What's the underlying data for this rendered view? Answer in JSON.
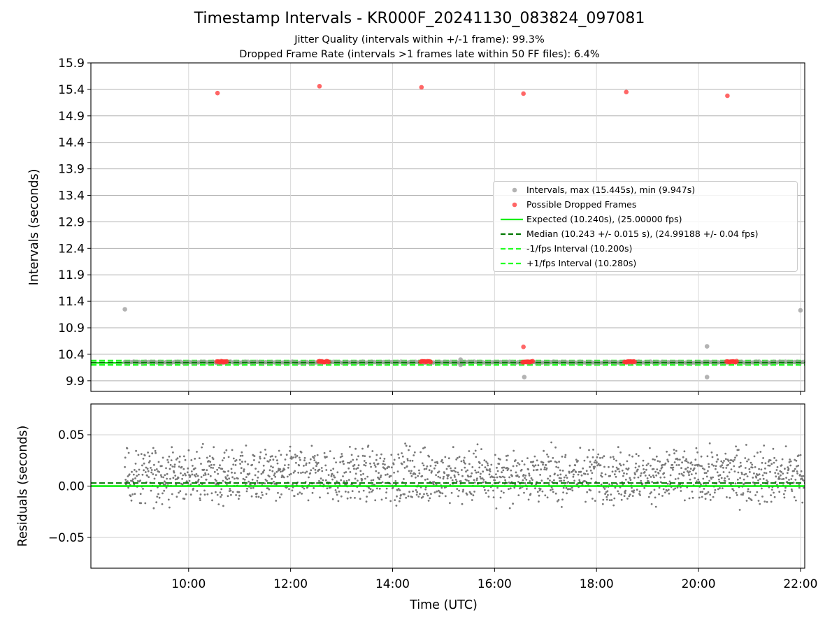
{
  "titles": {
    "main": "Timestamp Intervals - KR000F_20241130_083824_097081",
    "sub1": "Jitter Quality (intervals within +/-1 frame): 99.3%",
    "sub2": "Dropped Frame Rate (intervals >1 frames late within 50 FF files): 6.4%"
  },
  "colors": {
    "intervals": "#999999",
    "dropped": "#ff3333",
    "expected": "#00ee00",
    "median": "#007700",
    "fps_bounds": "#22ff22",
    "residuals": "#777777",
    "grid": "#b0b0b0"
  },
  "legend": [
    {
      "label": "Intervals, max (15.445s), min (9.947s)",
      "key": "dot-gray"
    },
    {
      "label": "Possible Dropped Frames",
      "key": "dot-red"
    },
    {
      "label": "Expected (10.240s), (25.00000 fps)",
      "key": "line-solid-green"
    },
    {
      "label": "Median (10.243 +/- 0.015 s), (24.99188 +/- 0.04 fps)",
      "key": "line-dashed-darkgreen"
    },
    {
      "label": "-1/fps Interval (10.200s)",
      "key": "line-dashed-lime"
    },
    {
      "label": "+1/fps Interval (10.280s)",
      "key": "line-dashed-lime"
    }
  ],
  "chart_data": [
    {
      "type": "scatter",
      "ylabel": "Intervals (seconds)",
      "xlabel": "",
      "xlim": [
        "08:05",
        "22:05"
      ],
      "ylim": [
        9.7,
        15.9
      ],
      "yticks": [
        "9.9",
        "10.4",
        "10.9",
        "11.4",
        "11.9",
        "12.4",
        "12.9",
        "13.4",
        "13.9",
        "14.4",
        "14.9",
        "15.4",
        "15.9"
      ],
      "grid": true,
      "legend_position": "center-right",
      "reference_lines": {
        "expected": 10.24,
        "median": 10.243,
        "minus_1_fps": 10.2,
        "plus_1_fps": 10.28
      },
      "series": [
        {
          "name": "Intervals, max (15.445s), min (9.947s)",
          "band": {
            "x_start": "08:45",
            "x_end": "22:05",
            "y_center": 10.25,
            "y_spread": 0.02
          },
          "outliers": [
            {
              "x": "08:45",
              "y": 11.25
            },
            {
              "x": "15:20",
              "y": 10.3
            },
            {
              "x": "15:20",
              "y": 10.2
            },
            {
              "x": "16:35",
              "y": 9.97
            },
            {
              "x": "20:10",
              "y": 10.55
            },
            {
              "x": "20:10",
              "y": 9.97
            },
            {
              "x": "22:00",
              "y": 11.23
            }
          ]
        },
        {
          "name": "Possible Dropped Frames",
          "points": [
            {
              "x": "10:34",
              "y": 15.33
            },
            {
              "x": "12:34",
              "y": 15.46
            },
            {
              "x": "14:34",
              "y": 15.44
            },
            {
              "x": "16:34",
              "y": 15.32
            },
            {
              "x": "18:35",
              "y": 15.35
            },
            {
              "x": "20:34",
              "y": 15.28
            },
            {
              "x": "16:34",
              "y": 10.54
            }
          ],
          "clusters": [
            {
              "x_start": "10:33",
              "x_end": "10:45",
              "y": 10.26
            },
            {
              "x_start": "12:33",
              "x_end": "12:45",
              "y": 10.26
            },
            {
              "x_start": "14:33",
              "x_end": "14:45",
              "y": 10.26
            },
            {
              "x_start": "16:33",
              "x_end": "16:45",
              "y": 10.26
            },
            {
              "x_start": "18:33",
              "x_end": "18:45",
              "y": 10.26
            },
            {
              "x_start": "20:33",
              "x_end": "20:45",
              "y": 10.26
            }
          ]
        }
      ]
    },
    {
      "type": "scatter",
      "ylabel": "Residuals (seconds)",
      "xlabel": "Time (UTC)",
      "xlim": [
        "08:05",
        "22:05"
      ],
      "ylim": [
        -0.08,
        0.08
      ],
      "yticks": [
        "−0.05",
        "0.00",
        "0.05"
      ],
      "xticks": [
        "10:00",
        "12:00",
        "14:00",
        "16:00",
        "18:00",
        "20:00",
        "22:00"
      ],
      "grid": true,
      "reference_lines": {
        "zero": 0.0,
        "median_offset": 0.003
      },
      "series": [
        {
          "name": "Residuals",
          "band": {
            "x_start": "08:45",
            "x_end": "22:05",
            "y_min": -0.027,
            "y_max": 0.047,
            "clusters": [
              0.0,
              0.02
            ]
          }
        }
      ]
    }
  ]
}
